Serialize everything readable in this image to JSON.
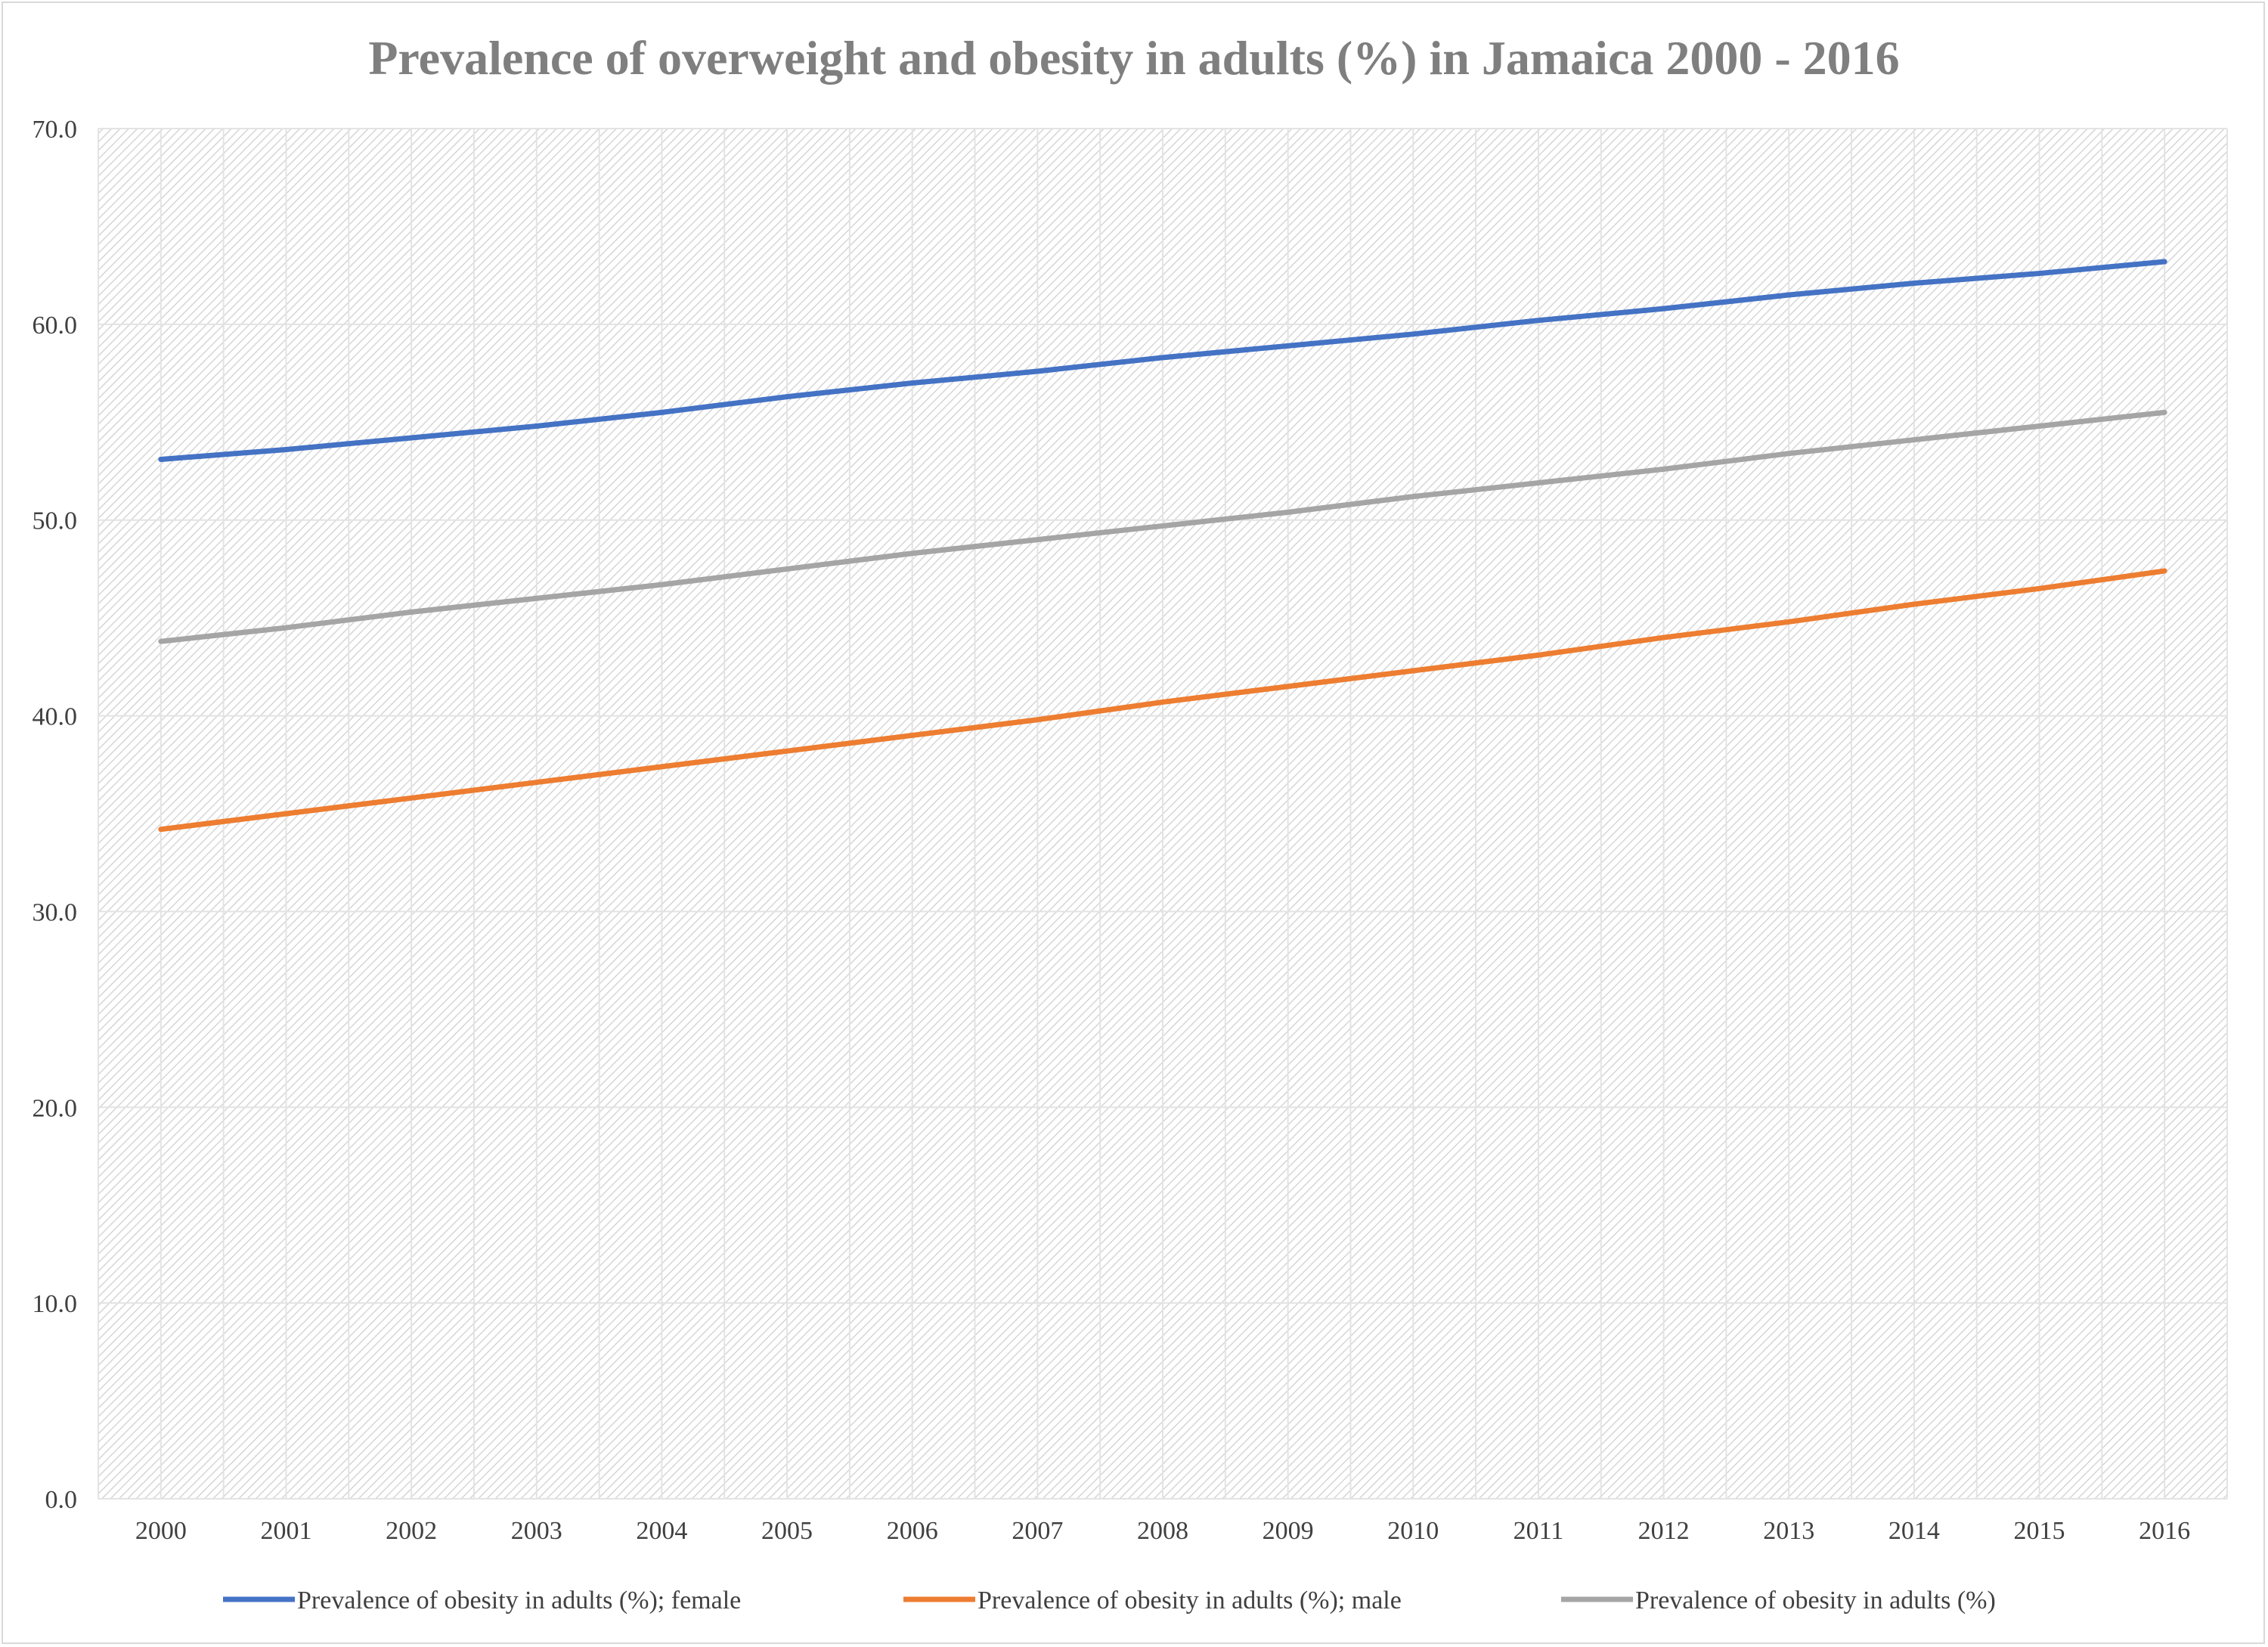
{
  "chart_data": {
    "type": "line",
    "title": "Prevalence of overweight and obesity in adults (%) in Jamaica 2000 - 2016",
    "xlabel": "",
    "ylabel": "",
    "categories": [
      "2000",
      "2001",
      "2002",
      "2003",
      "2004",
      "2005",
      "2006",
      "2007",
      "2008",
      "2009",
      "2010",
      "2011",
      "2012",
      "2013",
      "2014",
      "2015",
      "2016"
    ],
    "ylim": [
      0,
      70
    ],
    "yticks": [
      "0.0",
      "10.0",
      "20.0",
      "30.0",
      "40.0",
      "50.0",
      "60.0",
      "70.0"
    ],
    "grid": true,
    "legend": "bottom",
    "series": [
      {
        "name": "Prevalence of obesity in adults (%); female",
        "color": "#4472c4",
        "values": [
          53.1,
          53.6,
          54.2,
          54.8,
          55.5,
          56.3,
          57.0,
          57.6,
          58.3,
          58.9,
          59.5,
          60.2,
          60.8,
          61.5,
          62.1,
          62.6,
          63.2
        ]
      },
      {
        "name": "Prevalence of obesity in adults (%); male",
        "color": "#ed7d31",
        "values": [
          34.2,
          35.0,
          35.8,
          36.6,
          37.4,
          38.2,
          39.0,
          39.8,
          40.7,
          41.5,
          42.3,
          43.1,
          44.0,
          44.8,
          45.7,
          46.5,
          47.4
        ]
      },
      {
        "name": "Prevalence of obesity in adults (%)",
        "color": "#a5a5a5",
        "values": [
          43.8,
          44.5,
          45.3,
          46.0,
          46.7,
          47.5,
          48.3,
          49.0,
          49.7,
          50.4,
          51.2,
          51.9,
          52.6,
          53.4,
          54.1,
          54.8,
          55.5
        ]
      }
    ]
  }
}
